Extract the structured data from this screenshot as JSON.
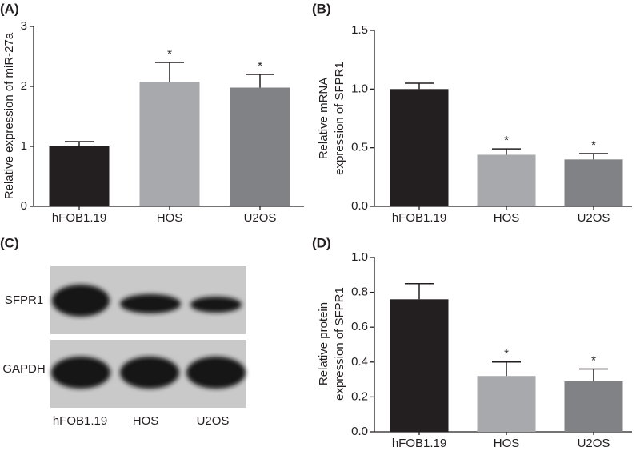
{
  "chart_data": [
    {
      "type": "bar",
      "panel": "(A)",
      "ylabel": [
        "Relative expression of miR-27a"
      ],
      "categories": [
        "hFOB1.19",
        "HOS",
        "U2OS"
      ],
      "values": [
        1.0,
        2.08,
        1.98
      ],
      "errors": [
        0.08,
        0.32,
        0.22
      ],
      "markers": [
        null,
        "*",
        "*"
      ],
      "colors": [
        "#231f20",
        "#a7a9ac",
        "#808285"
      ],
      "ylim": [
        0,
        3
      ],
      "yticks": [
        0,
        1,
        2,
        3
      ]
    },
    {
      "type": "bar",
      "panel": "(B)",
      "ylabel": [
        "Relative mRNA",
        "expression of SFPR1"
      ],
      "categories": [
        "hFOB1.19",
        "HOS",
        "U2OS"
      ],
      "values": [
        1.0,
        0.44,
        0.4
      ],
      "errors": [
        0.05,
        0.05,
        0.05
      ],
      "markers": [
        null,
        "*",
        "*"
      ],
      "colors": [
        "#231f20",
        "#a7a9ac",
        "#808285"
      ],
      "ylim": [
        0,
        1.5
      ],
      "yticks": [
        {
          "value": 0,
          "label": "0.0"
        },
        0.5,
        {
          "value": 1,
          "label": "1.0"
        },
        1.5
      ]
    },
    {
      "type": "blot",
      "panel": "(C)",
      "rows": [
        "SFPR1",
        "GAPDH"
      ],
      "categories": [
        "hFOB1.19",
        "HOS",
        "U2OS"
      ]
    },
    {
      "type": "bar",
      "panel": "(D)",
      "ylabel": [
        "Relative protein",
        "expression of SFPR1"
      ],
      "categories": [
        "hFOB1.19",
        "HOS",
        "U2OS"
      ],
      "values": [
        0.76,
        0.32,
        0.29
      ],
      "errors": [
        0.09,
        0.08,
        0.07
      ],
      "markers": [
        null,
        "*",
        "*"
      ],
      "colors": [
        "#231f20",
        "#a7a9ac",
        "#808285"
      ],
      "ylim": [
        0,
        1.0
      ],
      "yticks": [
        {
          "value": 0,
          "label": "0.0"
        },
        0.2,
        0.4,
        0.6,
        0.8,
        {
          "value": 1,
          "label": "1.0"
        }
      ]
    }
  ]
}
